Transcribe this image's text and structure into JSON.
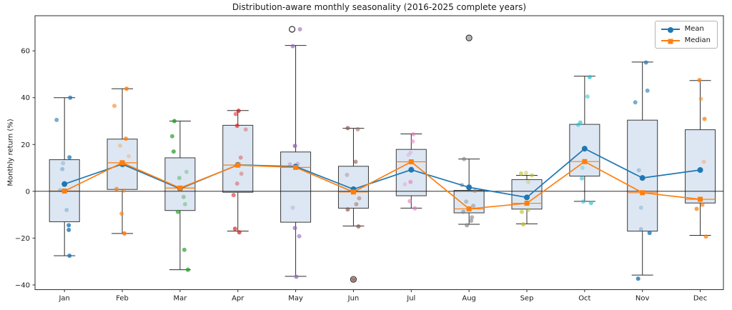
{
  "chart_data": {
    "type": "box",
    "title": "Distribution-aware monthly seasonality (2016-2025 complete years)",
    "ylabel": "Monthly return (%)",
    "categories": [
      "Jan",
      "Feb",
      "Mar",
      "Apr",
      "May",
      "Jun",
      "Jul",
      "Aug",
      "Sep",
      "Oct",
      "Nov",
      "Dec"
    ],
    "ylim": [
      -42,
      75
    ],
    "yticks": [
      -40,
      -20,
      0,
      20,
      40,
      60
    ],
    "grid": false,
    "zero_line": 0,
    "legend_position": "upper right",
    "box_fill": "#dde7f3",
    "box_edge": "#3a3a3a",
    "whisker_color": "#2e2e2e",
    "median_line_color": "#ff7f0e",
    "series": [
      {
        "name": "Mean",
        "color": "#1f77b4",
        "marker": "circle",
        "values": [
          3.1,
          11.6,
          1.1,
          11.3,
          10.6,
          0.9,
          9.2,
          1.7,
          -2.6,
          18.2,
          5.7,
          9.1
        ]
      },
      {
        "name": "Median",
        "color": "#ff7f0e",
        "marker": "square",
        "values": [
          0.1,
          12.2,
          1.4,
          11.2,
          10.2,
          -0.3,
          12.6,
          -7.5,
          -5.1,
          12.7,
          -0.6,
          -3.4
        ]
      }
    ],
    "boxes": [
      {
        "month": "Jan",
        "whislo": -27.5,
        "q1": -13.0,
        "med": 0.1,
        "q3": 13.5,
        "whishi": 40.0,
        "fliers": [],
        "point_color": "#1f77b4",
        "points": [
          [
            40,
            8,
            0.75
          ],
          [
            30.5,
            -11,
            0.6
          ],
          [
            14.5,
            7,
            0.75
          ],
          [
            12,
            -2,
            0.25
          ],
          [
            9.5,
            -3,
            0.35
          ],
          [
            0.5,
            -6,
            0.3
          ],
          [
            -8,
            3,
            0.3
          ],
          [
            -14.5,
            6,
            0.8
          ],
          [
            -16.5,
            6,
            0.8
          ],
          [
            -27.5,
            7,
            0.8
          ]
        ]
      },
      {
        "month": "Feb",
        "whislo": -18.0,
        "q1": 0.8,
        "med": 12.2,
        "q3": 22.3,
        "whishi": 43.8,
        "fliers": [],
        "point_color": "#ff7f0e",
        "points": [
          [
            43.8,
            6,
            0.85
          ],
          [
            36.5,
            -11,
            0.6
          ],
          [
            22.5,
            5,
            0.8
          ],
          [
            19.5,
            -3,
            0.3
          ],
          [
            15,
            9,
            0.25
          ],
          [
            11,
            1,
            0.45
          ],
          [
            1,
            -8,
            0.7
          ],
          [
            0.3,
            2,
            0.55
          ],
          [
            -9.5,
            -1,
            0.6
          ],
          [
            -18,
            3,
            0.9
          ]
        ]
      },
      {
        "month": "Mar",
        "whislo": -33.5,
        "q1": -8.2,
        "med": 1.4,
        "q3": 14.3,
        "whishi": 30.0,
        "fliers": [],
        "point_color": "#2ca02c",
        "points": [
          [
            30,
            -8,
            0.85
          ],
          [
            23.5,
            -11,
            0.7
          ],
          [
            17,
            -9,
            0.75
          ],
          [
            8.3,
            9,
            0.3
          ],
          [
            5.7,
            -1,
            0.4
          ],
          [
            -2.4,
            5,
            0.4
          ],
          [
            -5.5,
            7,
            0.35
          ],
          [
            -8.8,
            -3,
            0.7
          ],
          [
            -25,
            6,
            0.7
          ],
          [
            -33.5,
            11,
            0.8
          ]
        ]
      },
      {
        "month": "Apr",
        "whislo": -17.0,
        "q1": -0.4,
        "med": 11.2,
        "q3": 28.2,
        "whishi": 34.5,
        "fliers": [],
        "point_color": "#d62728",
        "points": [
          [
            34.4,
            1,
            0.8
          ],
          [
            33,
            -3,
            0.55
          ],
          [
            28,
            -1,
            0.7
          ],
          [
            26.4,
            11,
            0.35
          ],
          [
            14.4,
            4,
            0.4
          ],
          [
            7.5,
            5,
            0.35
          ],
          [
            3.3,
            -1,
            0.4
          ],
          [
            -1.6,
            -6,
            0.6
          ],
          [
            -16,
            -4,
            0.7
          ],
          [
            -17.5,
            2,
            0.75
          ]
        ]
      },
      {
        "month": "May",
        "whislo": -36.3,
        "q1": -13.2,
        "med": 10.2,
        "q3": 16.8,
        "whishi": 62.3,
        "fliers": [
          [
            69.2,
            -5
          ]
        ],
        "point_color": "#9467bd",
        "points": [
          [
            69.2,
            6,
            0.6
          ],
          [
            62,
            -4,
            0.7
          ],
          [
            19.4,
            -1,
            0.8
          ],
          [
            11.8,
            3,
            0.3
          ],
          [
            11.5,
            -8,
            0.35
          ],
          [
            -7,
            -4,
            0.25
          ],
          [
            -15.7,
            -1,
            0.7
          ],
          [
            -19.2,
            5,
            0.6
          ],
          [
            -36.5,
            1,
            0.7
          ]
        ]
      },
      {
        "month": "Jun",
        "whislo": -14.8,
        "q1": -7.2,
        "med": -0.3,
        "q3": 10.7,
        "whishi": 26.9,
        "fliers": [
          [
            -37.6,
            0
          ]
        ],
        "point_color": "#8c564b",
        "points": [
          [
            27,
            -8,
            0.7
          ],
          [
            26.5,
            6,
            0.5
          ],
          [
            12.6,
            3,
            0.6
          ],
          [
            7,
            -9,
            0.3
          ],
          [
            -3,
            8,
            0.4
          ],
          [
            -5.5,
            4,
            0.45
          ],
          [
            -7.7,
            -8,
            0.7
          ],
          [
            -15,
            7,
            0.7
          ],
          [
            -37.6,
            0,
            0.8
          ]
        ]
      },
      {
        "month": "Jul",
        "whislo": -7.2,
        "q1": -1.9,
        "med": 12.6,
        "q3": 17.9,
        "whishi": 24.5,
        "fliers": [],
        "point_color": "#e377c2",
        "points": [
          [
            24.4,
            3,
            0.6
          ],
          [
            21.3,
            2,
            0.55
          ],
          [
            16.5,
            -1,
            0.3
          ],
          [
            15.5,
            -4,
            0.25
          ],
          [
            4,
            -1,
            0.6
          ],
          [
            3,
            -9,
            0.3
          ],
          [
            -4.2,
            -2,
            0.6
          ],
          [
            -7.3,
            5,
            0.65
          ]
        ]
      },
      {
        "month": "Aug",
        "whislo": -14.1,
        "q1": -9.2,
        "med": -7.5,
        "q3": 0.4,
        "whishi": 13.8,
        "fliers": [
          [
            65.5,
            0
          ]
        ],
        "point_color": "#7f7f7f",
        "points": [
          [
            65.5,
            0,
            0.6
          ],
          [
            13.8,
            -7,
            0.6
          ],
          [
            2.7,
            -10,
            0.5
          ],
          [
            0.2,
            8,
            0.5
          ],
          [
            -4.4,
            -4,
            0.4
          ],
          [
            -6.2,
            6,
            0.45
          ],
          [
            -8.8,
            -8,
            0.55
          ],
          [
            -11.1,
            4,
            0.6
          ],
          [
            -12.6,
            3,
            0.6
          ],
          [
            -14.5,
            -3,
            0.65
          ]
        ]
      },
      {
        "month": "Sep",
        "whislo": -13.9,
        "q1": -7.6,
        "med": -5.1,
        "q3": 5.0,
        "whishi": 6.8,
        "fliers": [],
        "point_color": "#bcbd22",
        "points": [
          [
            7.9,
            -1,
            0.45
          ],
          [
            7.6,
            -8,
            0.6
          ],
          [
            6.8,
            7,
            0.55
          ],
          [
            4,
            2,
            0.35
          ],
          [
            -8,
            2,
            0.5
          ],
          [
            -8.8,
            -7,
            0.6
          ],
          [
            -14.1,
            -5,
            0.7
          ]
        ]
      },
      {
        "month": "Oct",
        "whislo": -4.3,
        "q1": 6.5,
        "med": 12.7,
        "q3": 28.6,
        "whishi": 49.2,
        "fliers": [],
        "point_color": "#17becf",
        "points": [
          [
            48.8,
            7,
            0.7
          ],
          [
            40.5,
            4,
            0.5
          ],
          [
            29.4,
            -6,
            0.6
          ],
          [
            28.4,
            -9,
            0.5
          ],
          [
            10,
            -3,
            0.3
          ],
          [
            5.5,
            -4,
            0.55
          ],
          [
            -4.4,
            -2,
            0.5
          ],
          [
            -5,
            9,
            0.6
          ]
        ]
      },
      {
        "month": "Nov",
        "whislo": -35.8,
        "q1": -17.0,
        "med": -0.6,
        "q3": 30.4,
        "whishi": 55.2,
        "fliers": [],
        "point_color": "#1f77b4",
        "points": [
          [
            55,
            5,
            0.7
          ],
          [
            43,
            7,
            0.6
          ],
          [
            38,
            -10,
            0.6
          ],
          [
            9,
            -5,
            0.3
          ],
          [
            -7,
            -2,
            0.25
          ],
          [
            -16.2,
            -2,
            0.3
          ],
          [
            -17.8,
            10,
            0.8
          ],
          [
            -37.3,
            -6,
            0.8
          ]
        ]
      },
      {
        "month": "Dec",
        "whislo": -18.8,
        "q1": -5.0,
        "med": -3.4,
        "q3": 26.3,
        "whishi": 47.3,
        "fliers": [],
        "point_color": "#ff7f0e",
        "points": [
          [
            47.5,
            -1,
            0.8
          ],
          [
            39.5,
            1,
            0.5
          ],
          [
            30.9,
            6,
            0.75
          ],
          [
            12.6,
            5,
            0.3
          ],
          [
            -5.7,
            3,
            0.7
          ],
          [
            -7.5,
            -5,
            0.75
          ],
          [
            -19.3,
            8,
            0.75
          ]
        ]
      }
    ]
  },
  "legend": {
    "mean_label": "Mean",
    "median_label": "Median"
  }
}
